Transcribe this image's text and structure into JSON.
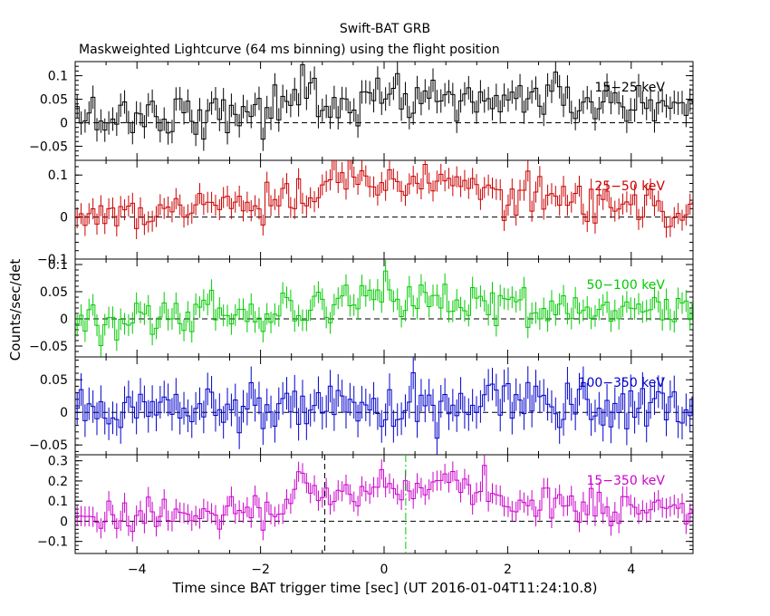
{
  "chart_data": {
    "type": "line",
    "title": "Swift-BAT GRB",
    "subtitle": "Maskweighted Lightcurve (64 ms binning) using the flight position",
    "xlabel": "Time since BAT trigger time [sec] (UT 2016-01-04T11:24:10.8)",
    "ylabel": "Counts/sec/det",
    "xlim": [
      -5,
      5
    ],
    "xticks": [
      -4,
      -2,
      0,
      2,
      4
    ],
    "xtick_labels": [
      "−4",
      "−2",
      "0",
      "2",
      "4"
    ],
    "bin_width_sec": 0.064,
    "panels": [
      {
        "name": "15-25 keV",
        "label": "15−25 keV",
        "color": "#000000",
        "ylim": [
          -0.08,
          0.13
        ],
        "yticks": [
          -0.05,
          0,
          0.05,
          0.1
        ],
        "ytick_labels": [
          "−0.05",
          "0",
          "0.05",
          "0.1"
        ],
        "noise": 0.025,
        "err": 0.025,
        "signal": [
          [
            -5,
            0.01
          ],
          [
            -1.5,
            0.03
          ],
          [
            -1.3,
            0.09
          ],
          [
            -0.9,
            0.03
          ],
          [
            0,
            0.05
          ],
          [
            0.9,
            0.06
          ],
          [
            1.5,
            0.04
          ],
          [
            2.1,
            0.06
          ],
          [
            5,
            0.02
          ]
        ]
      },
      {
        "name": "25-50 keV",
        "label": "25−50 keV",
        "color": "#cc0000",
        "ylim": [
          -0.1,
          0.135
        ],
        "yticks": [
          -0.1,
          0,
          0.1
        ],
        "ytick_labels": [
          "−0.1",
          "0",
          "0.1"
        ],
        "noise": 0.022,
        "err": 0.025,
        "signal": [
          [
            -5,
            0.0
          ],
          [
            -1.2,
            0.04
          ],
          [
            -0.8,
            0.09
          ],
          [
            0,
            0.08
          ],
          [
            0.9,
            0.07
          ],
          [
            2,
            0.06
          ],
          [
            5,
            0.01
          ]
        ]
      },
      {
        "name": "50-100 keV",
        "label": "50−100 keV",
        "color": "#00cc00",
        "ylim": [
          -0.07,
          0.11
        ],
        "yticks": [
          -0.05,
          0,
          0.05,
          0.1
        ],
        "ytick_labels": [
          "−0.05",
          "0",
          "0.05",
          "0.1"
        ],
        "noise": 0.018,
        "err": 0.02,
        "signal": [
          [
            -5,
            0.0
          ],
          [
            -1.2,
            0.02
          ],
          [
            0,
            0.04
          ],
          [
            1,
            0.03
          ],
          [
            2.5,
            0.02
          ],
          [
            5,
            0.01
          ]
        ]
      },
      {
        "name": "100-350 keV",
        "label": "100−350 keV",
        "color": "#0000cc",
        "ylim": [
          -0.065,
          0.085
        ],
        "yticks": [
          -0.05,
          0,
          0.05
        ],
        "ytick_labels": [
          "−0.05",
          "0",
          "0.05"
        ],
        "noise": 0.02,
        "err": 0.025,
        "signal": [
          [
            -5,
            0.0
          ],
          [
            -1.3,
            0.02
          ],
          [
            0,
            0.005
          ],
          [
            1.5,
            0.02
          ],
          [
            5,
            0.005
          ]
        ]
      },
      {
        "name": "15-350 keV",
        "label": "15−350 keV",
        "color": "#cc00cc",
        "ylim": [
          -0.16,
          0.33
        ],
        "yticks": [
          -0.1,
          0,
          0.1,
          0.2,
          0.3
        ],
        "ytick_labels": [
          "−0.1",
          "0",
          "0.1",
          "0.2",
          "0.3"
        ],
        "noise": 0.045,
        "err": 0.05,
        "signal": [
          [
            -5,
            0.01
          ],
          [
            -1.5,
            0.05
          ],
          [
            -1.3,
            0.22
          ],
          [
            -0.9,
            0.12
          ],
          [
            0,
            0.17
          ],
          [
            0.9,
            0.2
          ],
          [
            2,
            0.12
          ],
          [
            5,
            0.03
          ]
        ]
      }
    ],
    "vertical_markers": [
      {
        "x": -0.96,
        "color": "#000000",
        "style": "dashed",
        "panel": "15-350 keV"
      },
      {
        "x": 0.35,
        "color": "#00cc00",
        "style": "dash-dot",
        "panel": "15-350 keV"
      }
    ],
    "zero_line": {
      "style": "dashed",
      "color": "#000000"
    }
  }
}
